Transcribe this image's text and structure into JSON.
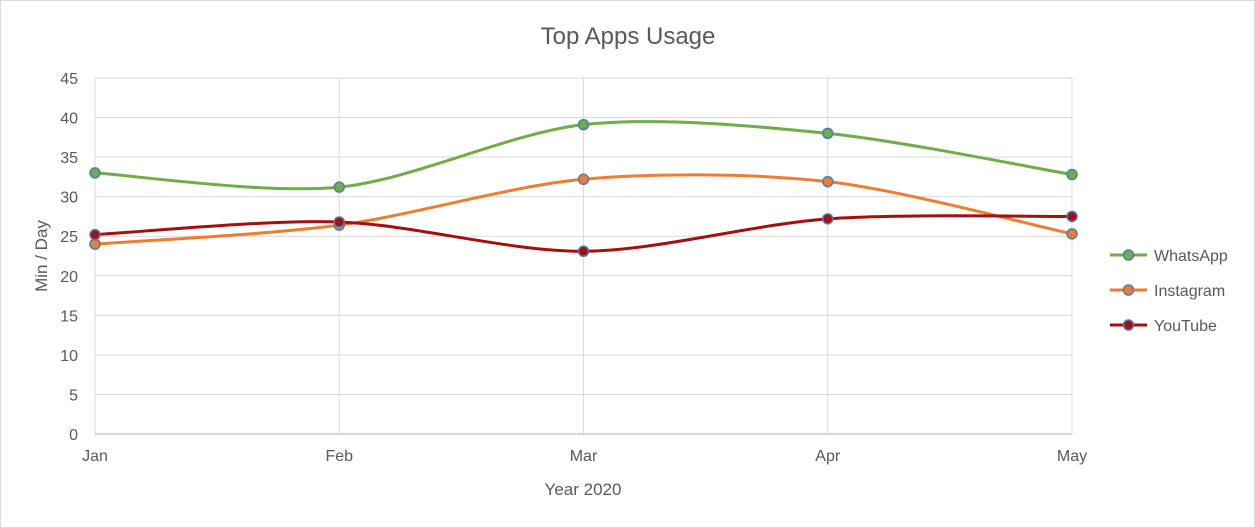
{
  "chart_data": {
    "type": "line",
    "smooth": true,
    "title": "Top Apps Usage",
    "xlabel": "Year 2020",
    "ylabel": "Min / Day",
    "categories": [
      "Jan",
      "Feb",
      "Mar",
      "Apr",
      "May"
    ],
    "ylim": [
      0,
      45
    ],
    "yticks": [
      0,
      5,
      10,
      15,
      20,
      25,
      30,
      35,
      40,
      45
    ],
    "grid": true,
    "legend_position": "right",
    "series": [
      {
        "name": "WhatsApp",
        "values": [
          33,
          31.2,
          39.1,
          38,
          32.8
        ],
        "color": "#70ad47"
      },
      {
        "name": "Instagram",
        "values": [
          24,
          26.4,
          32.2,
          31.9,
          25.3
        ],
        "color": "#ed7d31"
      },
      {
        "name": "YouTube",
        "values": [
          25.2,
          26.8,
          23.1,
          27.2,
          27.5
        ],
        "color": "#a50f0f"
      }
    ]
  }
}
